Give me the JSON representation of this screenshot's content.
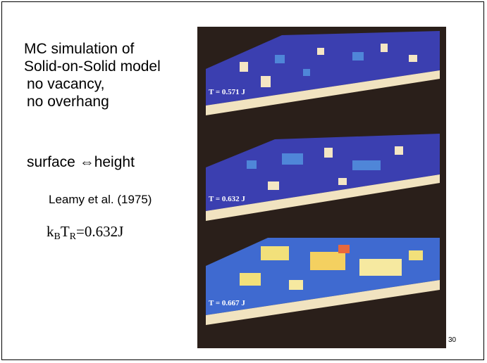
{
  "text": {
    "line1": "MC simulation of",
    "line2": "Solid-on-Solid model",
    "line3": "no vacancy,",
    "line4": "no overhang",
    "surface": "surface ⇔height",
    "citation": "Leamy et al. (1975)"
  },
  "formula": {
    "k": "k",
    "k_sub": "B",
    "t": "T",
    "t_sub": "R",
    "rest": "=0.632J"
  },
  "figure": {
    "labels": [
      "T = 0.571 J",
      "T = 0.632 J",
      "T = 0.667 J"
    ]
  },
  "page_number": "30"
}
